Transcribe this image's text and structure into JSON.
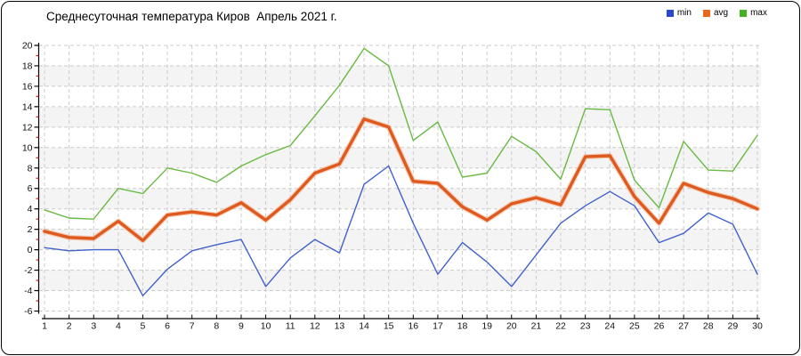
{
  "title": "Среднесуточная температура Киров  Апрель 2021 г.",
  "legend": [
    {
      "label": "min",
      "color": "#2947d1"
    },
    {
      "label": "avg",
      "color": "#e8671f"
    },
    {
      "label": "max",
      "color": "#43b21f"
    }
  ],
  "chart_data": {
    "type": "line",
    "title": "Среднесуточная температура Киров  Апрель 2021 г.",
    "xlabel": "",
    "ylabel": "",
    "x": [
      1,
      2,
      3,
      4,
      5,
      6,
      7,
      8,
      9,
      10,
      11,
      12,
      13,
      14,
      15,
      16,
      17,
      18,
      19,
      20,
      21,
      22,
      23,
      24,
      25,
      26,
      27,
      28,
      29,
      30
    ],
    "series": [
      {
        "name": "min",
        "color": "#4161cb",
        "width": 1.4,
        "values": [
          0.2,
          -0.1,
          0.0,
          0.0,
          -4.5,
          -1.9,
          -0.1,
          0.5,
          1.0,
          -3.6,
          -0.8,
          1.0,
          -0.3,
          6.4,
          8.2,
          2.6,
          -2.4,
          0.7,
          -1.2,
          -3.6,
          -0.5,
          2.6,
          4.3,
          5.7,
          4.3,
          0.7,
          1.6,
          3.6,
          2.5,
          -2.4
        ]
      },
      {
        "name": "avg",
        "color": "#de5a1e",
        "width": 3.4,
        "values": [
          1.8,
          1.2,
          1.1,
          2.8,
          0.9,
          3.4,
          3.7,
          3.4,
          4.6,
          2.9,
          4.9,
          7.5,
          8.4,
          12.8,
          12.0,
          6.7,
          6.5,
          4.2,
          2.9,
          4.5,
          5.1,
          4.4,
          9.1,
          9.2,
          5.2,
          2.6,
          6.5,
          5.6,
          5.0,
          4.0
        ]
      },
      {
        "name": "max",
        "color": "#68ba44",
        "width": 1.4,
        "values": [
          3.9,
          3.1,
          3.0,
          6.0,
          5.5,
          8.0,
          7.5,
          6.6,
          8.2,
          9.3,
          10.2,
          13.1,
          16.1,
          19.7,
          18.0,
          10.7,
          12.5,
          7.1,
          7.5,
          11.1,
          9.6,
          6.9,
          13.8,
          13.7,
          6.8,
          4.1,
          10.6,
          7.8,
          7.7,
          11.2
        ]
      }
    ],
    "ylim": [
      -6,
      20
    ],
    "ytick_step": 2,
    "grid": "dashed",
    "band_fill": "#f4f4f4",
    "grid_color": "#cbcbcb",
    "axis_color": "#000000",
    "minor_tick_color": "#cc2020",
    "label_color": "#111111",
    "legend_position": "top-right"
  }
}
